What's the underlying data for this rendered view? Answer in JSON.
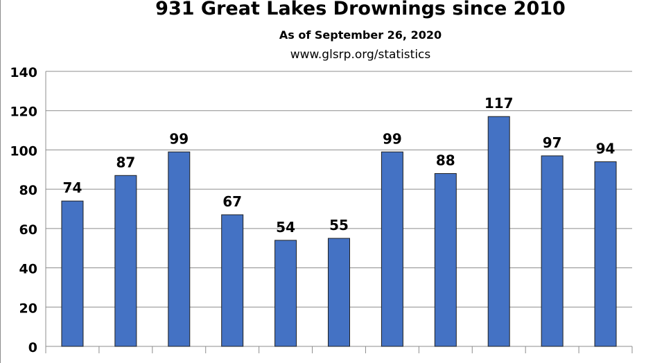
{
  "chart_data": {
    "type": "bar",
    "title": "931 Great Lakes Drownings since 2010",
    "subtitle": "As of September 26, 2020",
    "source": "www.glsrp.org/statistics",
    "categories": [
      "",
      "",
      "",
      "",
      "",
      "",
      "",
      "",
      "",
      "",
      ""
    ],
    "values": [
      74,
      87,
      99,
      67,
      54,
      55,
      99,
      88,
      117,
      97,
      94
    ],
    "ylim": [
      0,
      140
    ],
    "yticks": [
      0,
      20,
      40,
      60,
      80,
      100,
      120,
      140
    ],
    "grid": true,
    "bar_color": "#4472c4",
    "data_labels": true
  }
}
